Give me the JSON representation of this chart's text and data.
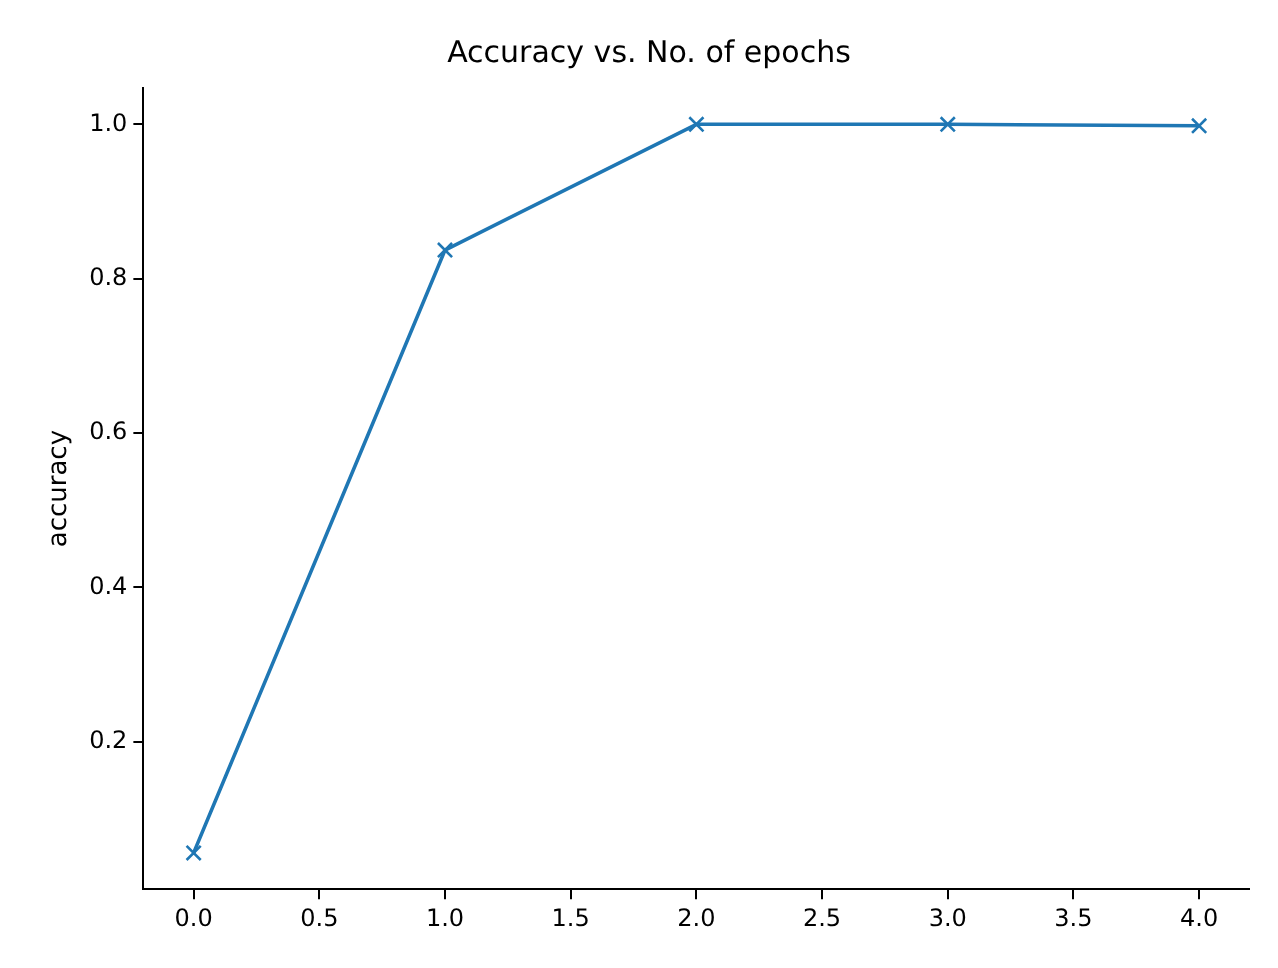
{
  "chart_data": {
    "type": "line",
    "title": "Accuracy vs. No. of epochs",
    "ylabel": "accuracy",
    "x": [
      0,
      1,
      2,
      3,
      4
    ],
    "series": [
      {
        "color": "#1f77b4",
        "values": [
          0.056,
          0.837,
          1.0,
          1.0,
          0.998
        ]
      }
    ],
    "xlim": [
      -0.2,
      4.2
    ],
    "ylim": [
      0.009,
      1.047
    ],
    "xticks": [
      {
        "value": 0,
        "label": "0.0"
      },
      0.5,
      {
        "value": 1,
        "label": "1.0"
      },
      1.5,
      {
        "value": 2,
        "label": "2.0"
      },
      2.5,
      {
        "value": 3,
        "label": "3.0"
      },
      3.5,
      {
        "value": 4,
        "label": "4.0"
      }
    ],
    "yticks": [
      0.2,
      0.4,
      0.6,
      0.8,
      {
        "value": 1,
        "label": "1.0"
      }
    ],
    "grid": false,
    "legend": false,
    "marker": "cross",
    "line_style": "solid"
  }
}
